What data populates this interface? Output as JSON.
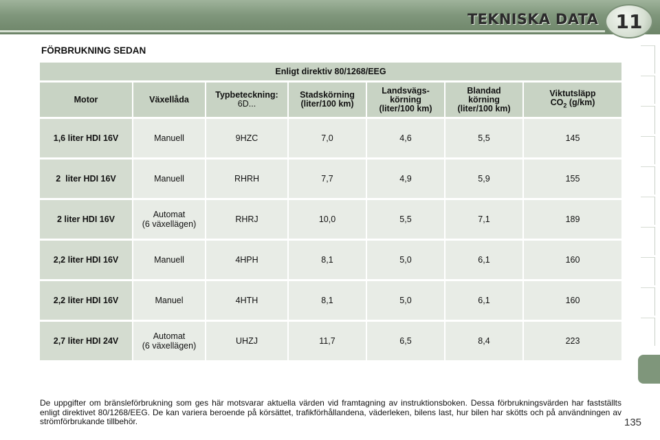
{
  "header": {
    "chapter_title": "TEKNISKA DATA",
    "chapter_number": "11"
  },
  "section_title": "FÖRBRUKNING SEDAN",
  "table": {
    "directive": "Enligt direktiv 80/1268/EEG",
    "columns": {
      "motor": "Motor",
      "gearbox": "Växellåda",
      "type_label": "Typbeteckning:",
      "type_sub": "6D...",
      "urban_1": "Stadskörning",
      "urban_2": "(liter/100 km)",
      "extra_1": "Landsvägs-",
      "extra_2": "körning",
      "extra_3": "(liter/100 km)",
      "combined_1": "Blandad",
      "combined_2": "körning",
      "combined_3": "(liter/100 km)",
      "co2_1": "Viktutsläpp",
      "co2_2a": "CO",
      "co2_2b": "2",
      "co2_2c": " (g/km)"
    },
    "rows": [
      {
        "motor": "1,6 liter HDI 16V",
        "gearbox": "Manuell",
        "type": "9HZC",
        "urban": "7,0",
        "extra": "4,6",
        "combined": "5,5",
        "co2": "145"
      },
      {
        "motor": "2  liter HDI 16V",
        "gearbox": "Manuell",
        "type": "RHRH",
        "urban": "7,7",
        "extra": "4,9",
        "combined": "5,9",
        "co2": "155"
      },
      {
        "motor": "2 liter HDI 16V",
        "gearbox": "Automat",
        "gearbox_2": "(6 växellägen)",
        "type": "RHRJ",
        "urban": "10,0",
        "extra": "5,5",
        "combined": "7,1",
        "co2": "189"
      },
      {
        "motor": "2,2 liter HDI 16V",
        "gearbox": "Manuell",
        "type": "4HPH",
        "urban": "8,1",
        "extra": "5,0",
        "combined": "6,1",
        "co2": "160"
      },
      {
        "motor": "2,2 liter HDI 16V",
        "gearbox": "Manuel",
        "type": "4HTH",
        "urban": "8,1",
        "extra": "5,0",
        "combined": "6,1",
        "co2": "160"
      },
      {
        "motor": "2,7 liter HDI 24V",
        "gearbox": "Automat",
        "gearbox_2": "(6 växellägen)",
        "type": "UHZJ",
        "urban": "11,7",
        "extra": "6,5",
        "combined": "8,4",
        "co2": "223"
      }
    ]
  },
  "footnote": "De uppgifter om bränsleförbrukning som ges här motsvarar aktuella värden vid framtagning av instruktionsboken. Dessa förbrukningsvärden har fastställts enligt direktivet 80/1268/EEG. De kan variera beroende på körsättet, trafikförhållandena, väderleken, bilens last, hur bilen har skötts och på användningen av strömförbrukande tillbehör.",
  "page_number": "135",
  "colors": {
    "header_green": "#7f967b",
    "table_header": "#c8d3c4",
    "cell_light": "#e8ece6",
    "cell_motor": "#d4dcd0"
  }
}
